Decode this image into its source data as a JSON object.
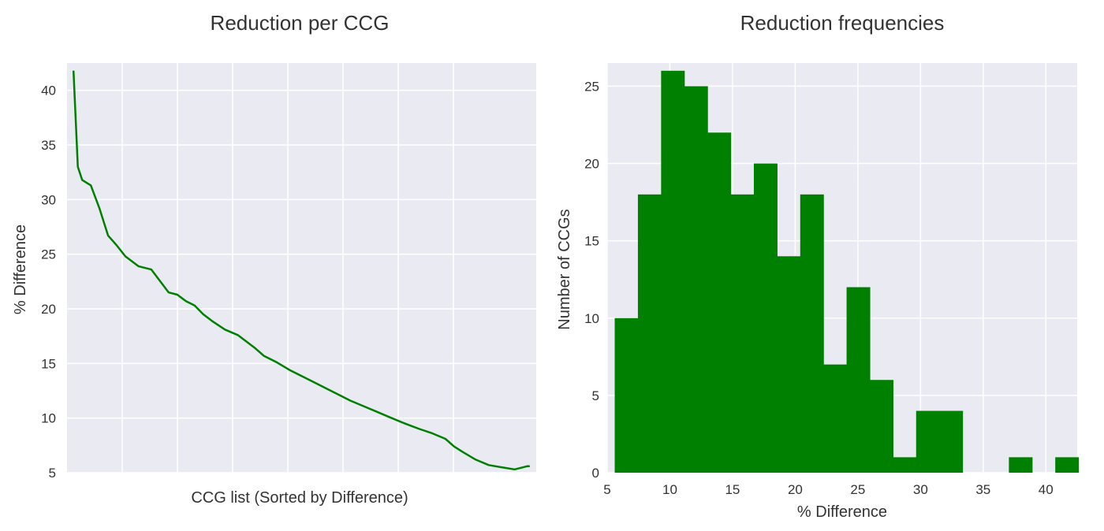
{
  "chart_data": [
    {
      "type": "line",
      "title": "Reduction per CCG",
      "xlabel": "CCG list (Sorted by Difference)",
      "ylabel": "% Difference",
      "x_tick_labels": "none",
      "ylim": [
        5,
        42.5
      ],
      "yticks": [
        5,
        10,
        15,
        20,
        25,
        30,
        35,
        40
      ],
      "grid": true,
      "color": "#008000",
      "series": [
        {
          "x": [
            0,
            2,
            4,
            8,
            12,
            16,
            20,
            24,
            30,
            36,
            44,
            48,
            52,
            56,
            58,
            60,
            64,
            70,
            76,
            80,
            84,
            88,
            94,
            100,
            106,
            112,
            118,
            124,
            128,
            134,
            140,
            146,
            152,
            156,
            160,
            166,
            172,
            176,
            180,
            186,
            192,
            198,
            204,
            210,
            211
          ],
          "values": [
            41.8,
            33.0,
            31.8,
            31.3,
            29.2,
            26.7,
            25.8,
            24.8,
            23.9,
            23.6,
            21.5,
            21.3,
            20.7,
            20.3,
            19.9,
            19.5,
            18.9,
            18.1,
            17.6,
            17.0,
            16.4,
            15.7,
            15.1,
            14.4,
            13.8,
            13.2,
            12.6,
            12.0,
            11.6,
            11.1,
            10.6,
            10.1,
            9.6,
            9.3,
            9.0,
            8.6,
            8.1,
            7.4,
            6.9,
            6.2,
            5.7,
            5.5,
            5.3,
            5.6,
            5.6
          ]
        }
      ]
    },
    {
      "type": "bar",
      "title": "Reduction frequencies",
      "xlabel": "% Difference",
      "ylabel": "Number of CCGs",
      "xlim": [
        5,
        42.5
      ],
      "ylim": [
        0,
        26.5
      ],
      "xticks": [
        5,
        10,
        15,
        20,
        25,
        30,
        35,
        40
      ],
      "yticks": [
        0,
        5,
        10,
        15,
        20,
        25
      ],
      "grid": true,
      "color": "#008000",
      "bin_edges": [
        5.6,
        7.45,
        9.3,
        11.15,
        13.0,
        14.85,
        16.7,
        18.55,
        20.4,
        22.25,
        24.1,
        25.95,
        27.8,
        29.65,
        31.5,
        33.35,
        35.2,
        37.05,
        38.9,
        40.75,
        42.6
      ],
      "values": [
        10,
        18,
        26,
        25,
        22,
        18,
        20,
        14,
        18,
        7,
        12,
        6,
        1,
        4,
        4,
        0,
        0,
        1,
        0,
        1
      ]
    }
  ]
}
